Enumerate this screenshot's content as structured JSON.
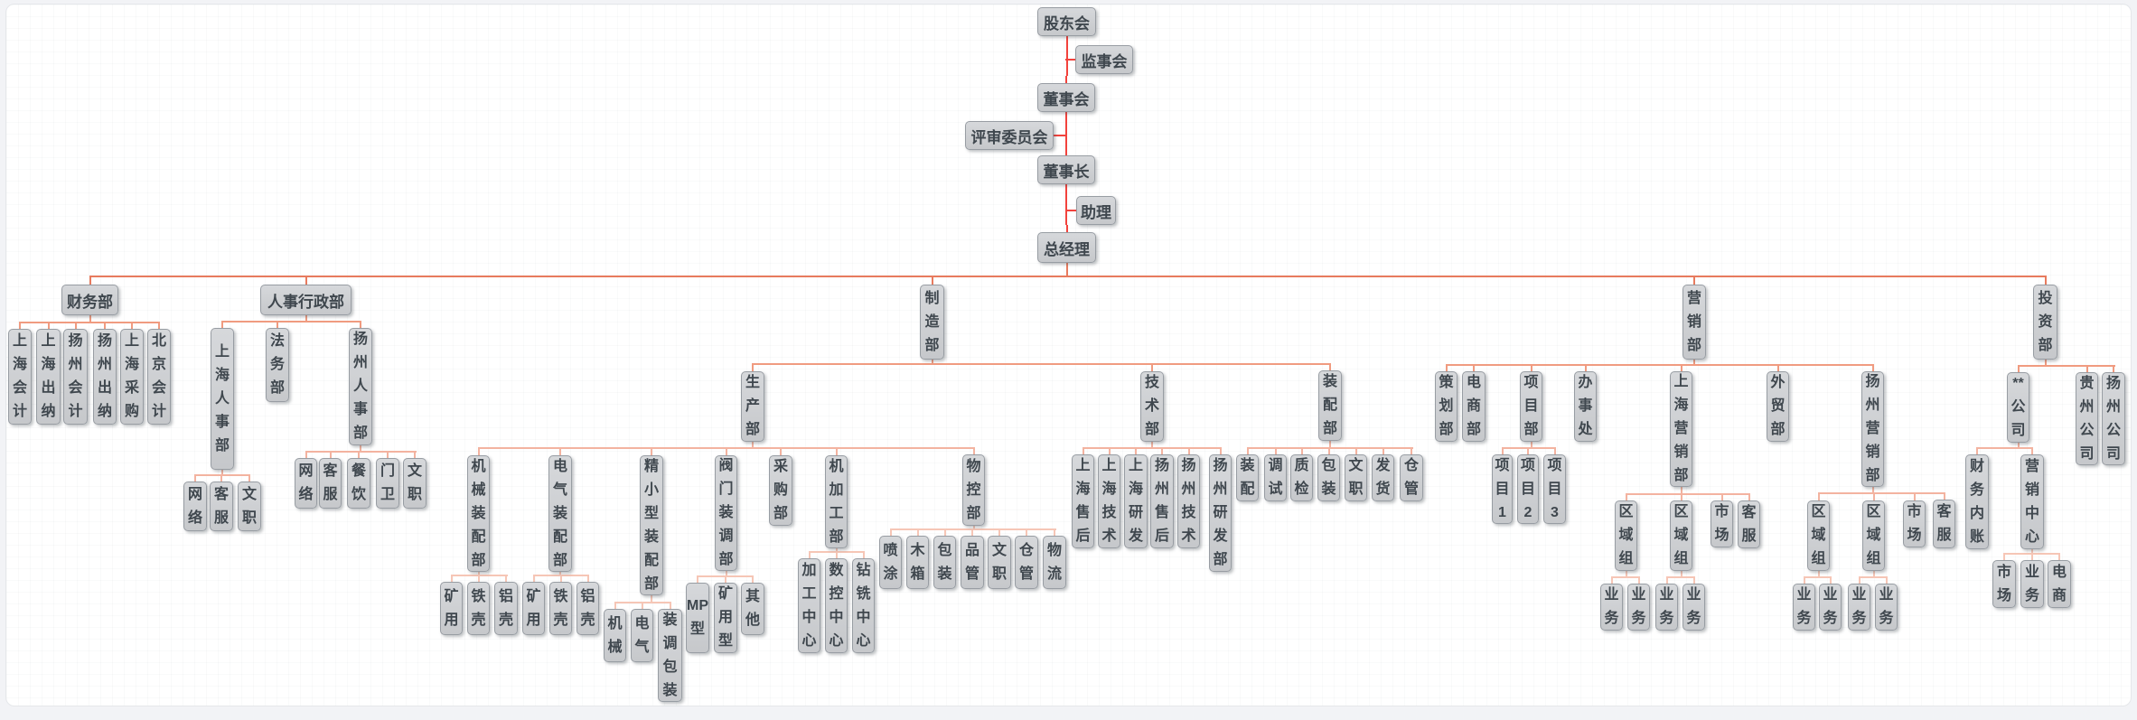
{
  "chart": {
    "type": "org-chart",
    "colors": {
      "page_background": "#f2f3f6",
      "canvas_background": "#ffffff",
      "node_fill_top": "#d6d8db",
      "node_fill_bottom": "#c6c8cb",
      "node_border": "#989da3",
      "node_text": "#3f474e",
      "connector_chain": "#f2423c",
      "connector_levels": [
        "#e87b5e",
        "#f09b80",
        "#f3b3a0",
        "#f6c6b6",
        "#f6cfc2"
      ]
    },
    "nodes": [
      {
        "id": "shareholders",
        "label": "股东会",
        "parent": null
      },
      {
        "id": "supervisory",
        "label": "监事会",
        "parent": "shareholders"
      },
      {
        "id": "board",
        "label": "董事会",
        "parent": "shareholders"
      },
      {
        "id": "review-committee",
        "label": "评审委员会",
        "parent": "board"
      },
      {
        "id": "chairman",
        "label": "董事长",
        "parent": "board"
      },
      {
        "id": "assistant",
        "label": "助理",
        "parent": "chairman"
      },
      {
        "id": "gm",
        "label": "总经理",
        "parent": "chairman"
      },
      {
        "id": "finance",
        "label": "财务部",
        "parent": "gm"
      },
      {
        "id": "hr-admin",
        "label": "人事行政部",
        "parent": "gm"
      },
      {
        "id": "manufacturing",
        "label": "制造部",
        "parent": "gm"
      },
      {
        "id": "marketing",
        "label": "营销部",
        "parent": "gm"
      },
      {
        "id": "investment",
        "label": "投资部",
        "parent": "gm"
      },
      {
        "id": "fin-sh-acct",
        "label": "上海会计",
        "parent": "finance"
      },
      {
        "id": "fin-sh-cashier",
        "label": "上海出纳",
        "parent": "finance"
      },
      {
        "id": "fin-yz-acct",
        "label": "扬州会计",
        "parent": "finance"
      },
      {
        "id": "fin-yz-cashier",
        "label": "扬州出纳",
        "parent": "finance"
      },
      {
        "id": "fin-sh-purchase",
        "label": "上海采购",
        "parent": "finance"
      },
      {
        "id": "fin-bj-acct",
        "label": "北京会计",
        "parent": "finance"
      },
      {
        "id": "hr-sh",
        "label": "上海人事部",
        "parent": "hr-admin"
      },
      {
        "id": "hr-legal",
        "label": "法务部",
        "parent": "hr-admin"
      },
      {
        "id": "hr-yz",
        "label": "扬州人事部",
        "parent": "hr-admin"
      },
      {
        "id": "hr-sh-network",
        "label": "网络",
        "parent": "hr-sh"
      },
      {
        "id": "hr-sh-service",
        "label": "客服",
        "parent": "hr-sh"
      },
      {
        "id": "hr-sh-clerk",
        "label": "文职",
        "parent": "hr-sh"
      },
      {
        "id": "hr-yz-network",
        "label": "网络",
        "parent": "hr-yz"
      },
      {
        "id": "hr-yz-service",
        "label": "客服",
        "parent": "hr-yz"
      },
      {
        "id": "hr-yz-canteen",
        "label": "餐饮",
        "parent": "hr-yz"
      },
      {
        "id": "hr-yz-guard",
        "label": "门卫",
        "parent": "hr-yz"
      },
      {
        "id": "hr-yz-clerk",
        "label": "文职",
        "parent": "hr-yz"
      },
      {
        "id": "production",
        "label": "生产部",
        "parent": "manufacturing"
      },
      {
        "id": "technology",
        "label": "技术部",
        "parent": "manufacturing"
      },
      {
        "id": "assembly",
        "label": "装配部",
        "parent": "manufacturing"
      },
      {
        "id": "mech-assembly",
        "label": "机械装配部",
        "parent": "production"
      },
      {
        "id": "elec-assembly",
        "label": "电气装配部",
        "parent": "production"
      },
      {
        "id": "small-assembly",
        "label": "精小型装配部",
        "parent": "production"
      },
      {
        "id": "valve-assembly",
        "label": "阀门装调部",
        "parent": "production"
      },
      {
        "id": "purchasing",
        "label": "采购部",
        "parent": "production"
      },
      {
        "id": "machining",
        "label": "机加工部",
        "parent": "production"
      },
      {
        "id": "material-control",
        "label": "物控部",
        "parent": "production"
      },
      {
        "id": "mech-mining",
        "label": "矿用",
        "parent": "mech-assembly"
      },
      {
        "id": "mech-iron",
        "label": "铁壳",
        "parent": "mech-assembly"
      },
      {
        "id": "mech-alu",
        "label": "铝壳",
        "parent": "mech-assembly"
      },
      {
        "id": "elec-mining",
        "label": "矿用",
        "parent": "elec-assembly"
      },
      {
        "id": "elec-iron",
        "label": "铁壳",
        "parent": "elec-assembly"
      },
      {
        "id": "elec-alu",
        "label": "铝壳",
        "parent": "elec-assembly"
      },
      {
        "id": "small-mech",
        "label": "机械",
        "parent": "small-assembly"
      },
      {
        "id": "small-elec",
        "label": "电气",
        "parent": "small-assembly"
      },
      {
        "id": "small-pack",
        "label": "装调包装",
        "parent": "small-assembly"
      },
      {
        "id": "valve-mp",
        "label": "MP型",
        "parent": "valve-assembly"
      },
      {
        "id": "valve-mining",
        "label": "矿用型",
        "parent": "valve-assembly"
      },
      {
        "id": "valve-other",
        "label": "其他",
        "parent": "valve-assembly"
      },
      {
        "id": "mach-center",
        "label": "加工中心",
        "parent": "machining"
      },
      {
        "id": "cnc-center",
        "label": "数控中心",
        "parent": "machining"
      },
      {
        "id": "drill-center",
        "label": "钻铣中心",
        "parent": "machining"
      },
      {
        "id": "mc-spray",
        "label": "喷涂",
        "parent": "material-control"
      },
      {
        "id": "mc-woodbox",
        "label": "木箱",
        "parent": "material-control"
      },
      {
        "id": "mc-pack",
        "label": "包装",
        "parent": "material-control"
      },
      {
        "id": "mc-quality",
        "label": "品管",
        "parent": "material-control"
      },
      {
        "id": "mc-clerk",
        "label": "文职",
        "parent": "material-control"
      },
      {
        "id": "mc-warehouse",
        "label": "仓管",
        "parent": "material-control"
      },
      {
        "id": "mc-logistics",
        "label": "物流",
        "parent": "material-control"
      },
      {
        "id": "tech-sh-after",
        "label": "上海售后",
        "parent": "technology"
      },
      {
        "id": "tech-sh-tech",
        "label": "上海技术",
        "parent": "technology"
      },
      {
        "id": "tech-sh-rd",
        "label": "上海研发",
        "parent": "technology"
      },
      {
        "id": "tech-yz-after",
        "label": "扬州售后",
        "parent": "technology"
      },
      {
        "id": "tech-yz-tech",
        "label": "扬州技术",
        "parent": "technology"
      },
      {
        "id": "tech-yz-rd",
        "label": "扬州研发部",
        "parent": "technology"
      },
      {
        "id": "assy-fit",
        "label": "装配",
        "parent": "assembly"
      },
      {
        "id": "assy-debug",
        "label": "调试",
        "parent": "assembly"
      },
      {
        "id": "assy-qc",
        "label": "质检",
        "parent": "assembly"
      },
      {
        "id": "assy-pack",
        "label": "包装",
        "parent": "assembly"
      },
      {
        "id": "assy-clerk",
        "label": "文职",
        "parent": "assembly"
      },
      {
        "id": "assy-ship",
        "label": "发货",
        "parent": "assembly"
      },
      {
        "id": "assy-warehouse",
        "label": "仓管",
        "parent": "assembly"
      },
      {
        "id": "planning",
        "label": "策划部",
        "parent": "marketing"
      },
      {
        "id": "ecommerce",
        "label": "电商部",
        "parent": "marketing"
      },
      {
        "id": "project",
        "label": "项目部",
        "parent": "marketing"
      },
      {
        "id": "office",
        "label": "办事处",
        "parent": "marketing"
      },
      {
        "id": "mkt-sh",
        "label": "上海营销部",
        "parent": "marketing"
      },
      {
        "id": "foreign-trade",
        "label": "外贸部",
        "parent": "marketing"
      },
      {
        "id": "mkt-yz",
        "label": "扬州营销部",
        "parent": "marketing"
      },
      {
        "id": "proj-1",
        "label": "项目1",
        "parent": "project"
      },
      {
        "id": "proj-2",
        "label": "项目2",
        "parent": "project"
      },
      {
        "id": "proj-3",
        "label": "项目3",
        "parent": "project"
      },
      {
        "id": "sh-region-1",
        "label": "区域组",
        "parent": "mkt-sh"
      },
      {
        "id": "sh-region-2",
        "label": "区域组",
        "parent": "mkt-sh"
      },
      {
        "id": "sh-market",
        "label": "市场",
        "parent": "mkt-sh"
      },
      {
        "id": "sh-service",
        "label": "客服",
        "parent": "mkt-sh"
      },
      {
        "id": "sh-r1-biz-1",
        "label": "业务",
        "parent": "sh-region-1"
      },
      {
        "id": "sh-r1-biz-2",
        "label": "业务",
        "parent": "sh-region-1"
      },
      {
        "id": "sh-r2-biz-1",
        "label": "业务",
        "parent": "sh-region-2"
      },
      {
        "id": "sh-r2-biz-2",
        "label": "业务",
        "parent": "sh-region-2"
      },
      {
        "id": "yz-region-1",
        "label": "区域组",
        "parent": "mkt-yz"
      },
      {
        "id": "yz-region-2",
        "label": "区域组",
        "parent": "mkt-yz"
      },
      {
        "id": "yz-market",
        "label": "市场",
        "parent": "mkt-yz"
      },
      {
        "id": "yz-service",
        "label": "客服",
        "parent": "mkt-yz"
      },
      {
        "id": "yz-r1-biz-1",
        "label": "业务",
        "parent": "yz-region-1"
      },
      {
        "id": "yz-r1-biz-2",
        "label": "业务",
        "parent": "yz-region-1"
      },
      {
        "id": "yz-r2-biz-1",
        "label": "业务",
        "parent": "yz-region-2"
      },
      {
        "id": "yz-r2-biz-2",
        "label": "业务",
        "parent": "yz-region-2"
      },
      {
        "id": "star-company",
        "label": "**公司",
        "parent": "investment"
      },
      {
        "id": "gz-company",
        "label": "贵州公司",
        "parent": "investment"
      },
      {
        "id": "yz-company",
        "label": "扬州公司",
        "parent": "investment"
      },
      {
        "id": "star-finance",
        "label": "财务内账",
        "parent": "star-company"
      },
      {
        "id": "star-marketing",
        "label": "营销中心",
        "parent": "star-company"
      },
      {
        "id": "star-market",
        "label": "市场",
        "parent": "star-marketing"
      },
      {
        "id": "star-biz",
        "label": "业务",
        "parent": "star-marketing"
      },
      {
        "id": "star-ecom",
        "label": "电商",
        "parent": "star-marketing"
      }
    ]
  }
}
